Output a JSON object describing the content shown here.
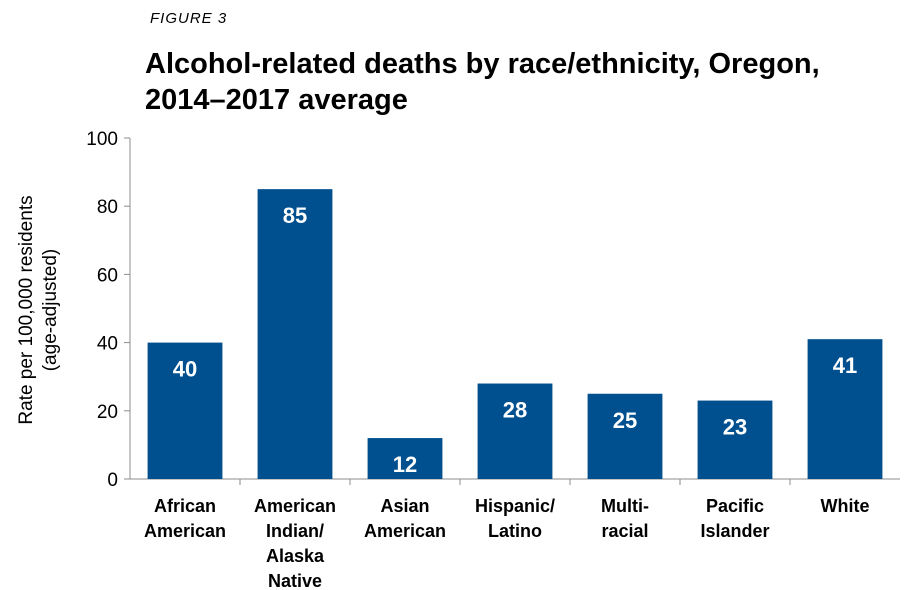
{
  "figure_label": "FIGURE 3",
  "chart_data": {
    "type": "bar",
    "title_lines": [
      "Alcohol-related deaths by race/ethnicity, Oregon,",
      "2014–2017 average"
    ],
    "ylabel_lines": [
      "Rate per 100,000 residents",
      "(age-adjusted)"
    ],
    "ylim": [
      0,
      100
    ],
    "yticks": [
      0,
      20,
      40,
      60,
      80,
      100
    ],
    "grid": false,
    "categories": [
      [
        "African",
        "American"
      ],
      [
        "American",
        "Indian/",
        "Alaska",
        "Native"
      ],
      [
        "Asian",
        "American"
      ],
      [
        "Hispanic/",
        "Latino"
      ],
      [
        "Multi-",
        "racial"
      ],
      [
        "Pacific",
        "Islander"
      ],
      [
        "White"
      ]
    ],
    "values": [
      40,
      85,
      12,
      28,
      25,
      23,
      41
    ],
    "data_labels": [
      "40",
      "85",
      "12",
      "28",
      "25",
      "23",
      "41"
    ],
    "bar_color": "#004f8f"
  }
}
